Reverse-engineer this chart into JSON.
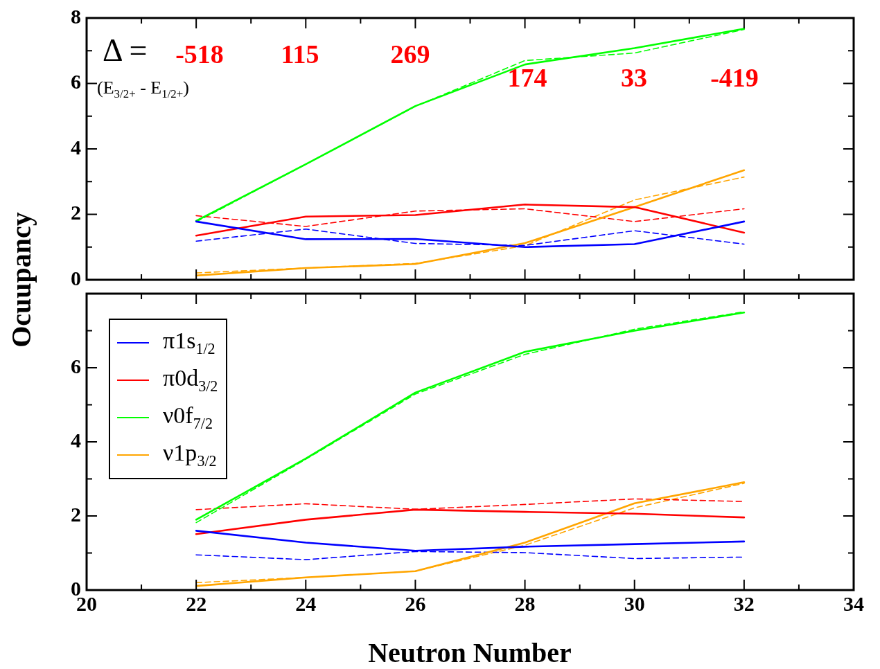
{
  "chart_data": [
    {
      "type": "line",
      "ylabel": "Ocuupancy",
      "x": [
        22,
        24,
        26,
        28,
        30,
        32
      ],
      "xlim": [
        20,
        34
      ],
      "xticks": [
        20,
        {
          "value": 21,
          "label": null
        },
        22,
        {
          "value": 23,
          "label": null
        },
        24,
        {
          "value": 25,
          "label": null
        },
        26,
        {
          "value": 27,
          "label": null
        },
        28,
        {
          "value": 29,
          "label": null
        },
        30,
        {
          "value": 31,
          "label": null
        },
        32,
        {
          "value": 33,
          "label": null
        },
        34
      ],
      "ylim": [
        0,
        8
      ],
      "yticks": [
        0,
        {
          "value": 1,
          "label": null
        },
        2,
        {
          "value": 3,
          "label": null
        },
        4,
        {
          "value": 5,
          "label": null
        },
        6,
        {
          "value": 7,
          "label": null
        },
        8
      ],
      "tick_labels": "y",
      "grid": false,
      "legend": false,
      "annotations": [
        "Δ =",
        "(E$_{3/2+}$ - E$_{1/2+}$)",
        "-518",
        "115",
        "269",
        "174",
        "33",
        "-419"
      ],
      "series": [
        {
          "color": "#0000ff",
          "values": [
            1.78,
            1.24,
            1.25,
            1.0,
            1.09,
            1.78
          ]
        },
        {
          "color": "#ff0000",
          "values": [
            1.35,
            1.93,
            1.98,
            2.3,
            2.22,
            1.44
          ]
        },
        {
          "color": "#00ff00",
          "values": [
            1.8,
            3.53,
            5.31,
            6.58,
            7.08,
            7.67
          ]
        },
        {
          "color": "#ffa500",
          "values": [
            0.13,
            0.36,
            0.48,
            1.12,
            2.22,
            3.35
          ]
        },
        {
          "color": "#0000ff",
          "line_style": "dashed",
          "values": [
            1.18,
            1.55,
            1.11,
            1.05,
            1.5,
            1.09
          ]
        },
        {
          "color": "#ff0000",
          "line_style": "dashed",
          "values": [
            1.96,
            1.63,
            2.1,
            2.17,
            1.78,
            2.17
          ]
        },
        {
          "color": "#00ff00",
          "line_style": "dashed",
          "values": [
            1.77,
            3.53,
            5.3,
            6.7,
            6.93,
            7.65
          ]
        },
        {
          "color": "#ffa500",
          "line_style": "dashed",
          "values": [
            0.21,
            0.36,
            0.5,
            1.04,
            2.44,
            3.14
          ]
        }
      ]
    },
    {
      "type": "line",
      "xlabel": "Neutron Number",
      "x": [
        22,
        24,
        26,
        28,
        30,
        32
      ],
      "xlim": [
        20,
        34
      ],
      "xticks": [
        20,
        {
          "value": 21,
          "label": null
        },
        22,
        {
          "value": 23,
          "label": null
        },
        24,
        {
          "value": 25,
          "label": null
        },
        26,
        {
          "value": 27,
          "label": null
        },
        28,
        {
          "value": 29,
          "label": null
        },
        30,
        {
          "value": 31,
          "label": null
        },
        32,
        {
          "value": 33,
          "label": null
        },
        34
      ],
      "ylim": [
        0,
        8
      ],
      "yticks": [
        0,
        {
          "value": 1,
          "label": null
        },
        2,
        {
          "value": 3,
          "label": null
        },
        4,
        {
          "value": 5,
          "label": null
        },
        6,
        {
          "value": 7,
          "label": null
        },
        {
          "value": 8,
          "label": null
        }
      ],
      "grid": false,
      "legend": "top left",
      "series": [
        {
          "name": "π1s$_{1/2}$",
          "color": "#0000ff",
          "values": [
            1.6,
            1.28,
            1.06,
            1.17,
            1.24,
            1.31
          ]
        },
        {
          "name": "π0d$_{3/2}$",
          "color": "#ff0000",
          "values": [
            1.51,
            1.9,
            2.17,
            2.11,
            2.06,
            1.96
          ]
        },
        {
          "name": "ν0f$_{7/2}$",
          "color": "#00ff00",
          "values": [
            1.9,
            3.55,
            5.33,
            6.43,
            7.0,
            7.49
          ]
        },
        {
          "name": "ν1p$_{3/2}$",
          "color": "#ffa500",
          "values": [
            0.11,
            0.34,
            0.51,
            1.28,
            2.34,
            2.91
          ]
        },
        {
          "color": "#0000ff",
          "line_style": "dashed",
          "values": [
            0.95,
            0.82,
            1.04,
            1.01,
            0.85,
            0.89
          ]
        },
        {
          "color": "#ff0000",
          "line_style": "dashed",
          "values": [
            2.17,
            2.33,
            2.18,
            2.31,
            2.46,
            2.39
          ]
        },
        {
          "color": "#00ff00",
          "line_style": "dashed",
          "values": [
            1.82,
            3.53,
            5.29,
            6.36,
            7.04,
            7.51
          ]
        },
        {
          "color": "#ffa500",
          "line_style": "dashed",
          "values": [
            0.2,
            0.34,
            0.51,
            1.21,
            2.22,
            2.88
          ]
        }
      ]
    }
  ]
}
